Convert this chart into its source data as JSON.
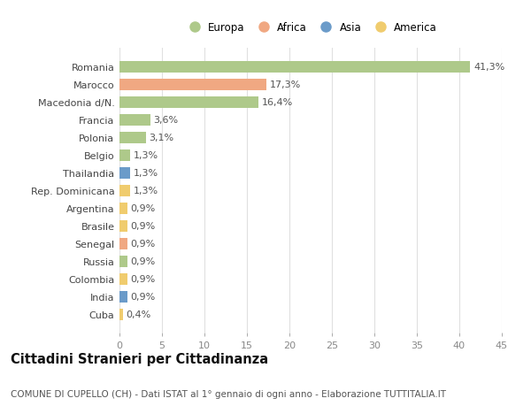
{
  "countries": [
    "Cuba",
    "India",
    "Colombia",
    "Russia",
    "Senegal",
    "Brasile",
    "Argentina",
    "Rep. Dominicana",
    "Thailandia",
    "Belgio",
    "Polonia",
    "Francia",
    "Macedonia d/N.",
    "Marocco",
    "Romania"
  ],
  "values": [
    0.4,
    0.9,
    0.9,
    0.9,
    0.9,
    0.9,
    0.9,
    1.3,
    1.3,
    1.3,
    3.1,
    3.6,
    16.4,
    17.3,
    41.3
  ],
  "labels": [
    "0,4%",
    "0,9%",
    "0,9%",
    "0,9%",
    "0,9%",
    "0,9%",
    "0,9%",
    "1,3%",
    "1,3%",
    "1,3%",
    "3,1%",
    "3,6%",
    "16,4%",
    "17,3%",
    "41,3%"
  ],
  "continents": [
    "America",
    "Asia",
    "America",
    "Europa",
    "Africa",
    "America",
    "America",
    "America",
    "Asia",
    "Europa",
    "Europa",
    "Europa",
    "Europa",
    "Africa",
    "Europa"
  ],
  "continent_colors": {
    "Europa": "#aec98a",
    "Africa": "#f0a882",
    "Asia": "#6b9bc9",
    "America": "#f0cc6e"
  },
  "legend_order": [
    "Europa",
    "Africa",
    "Asia",
    "America"
  ],
  "title": "Cittadini Stranieri per Cittadinanza",
  "subtitle": "COMUNE DI CUPELLO (CH) - Dati ISTAT al 1° gennaio di ogni anno - Elaborazione TUTTITALIA.IT",
  "xlim": [
    0,
    45
  ],
  "xticks": [
    0,
    5,
    10,
    15,
    20,
    25,
    30,
    35,
    40,
    45
  ],
  "background_color": "#ffffff",
  "grid_color": "#e0e0e0",
  "bar_height": 0.65,
  "label_fontsize": 8.0,
  "title_fontsize": 10.5,
  "subtitle_fontsize": 7.5,
  "ytick_fontsize": 8.0,
  "xtick_fontsize": 8.0,
  "legend_fontsize": 8.5
}
